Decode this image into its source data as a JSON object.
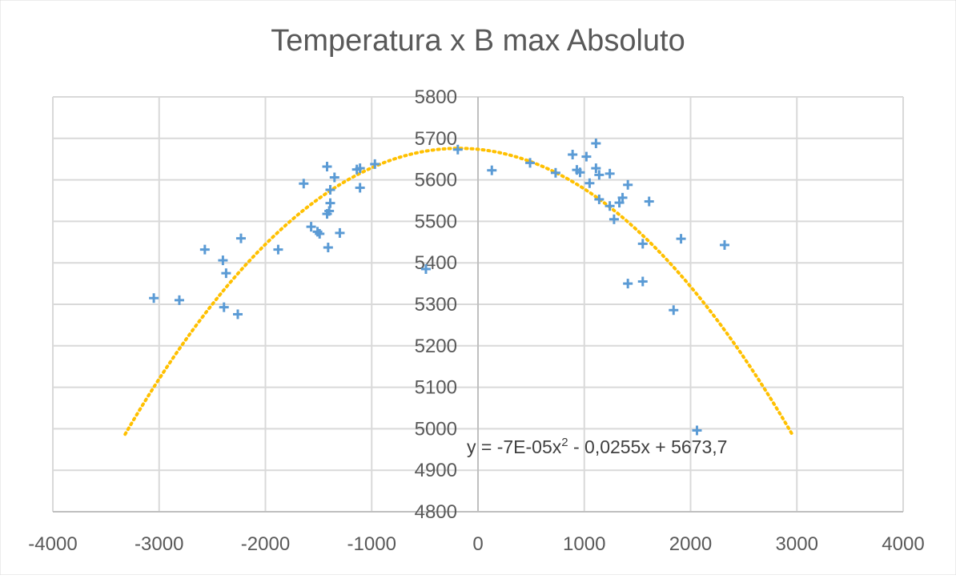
{
  "chart_data": {
    "type": "scatter",
    "title": "Temperatura x B max Absoluto",
    "xlabel": "",
    "ylabel": "",
    "xlim": [
      -4000,
      4000
    ],
    "ylim": [
      4800,
      5800
    ],
    "x_ticks": [
      -4000,
      -3000,
      -2000,
      -1000,
      0,
      1000,
      2000,
      3000,
      4000
    ],
    "y_ticks": [
      4800,
      4900,
      5000,
      5100,
      5200,
      5300,
      5400,
      5500,
      5600,
      5700,
      5800
    ],
    "x_tick_labels": [
      "-4000",
      "-3000",
      "-2000",
      "-1000",
      "0",
      "1000",
      "2000",
      "3000",
      "4000"
    ],
    "y_tick_labels": [
      "4800",
      "4900",
      "5000",
      "5100",
      "5200",
      "5300",
      "5400",
      "5500",
      "5600",
      "5700",
      "5800"
    ],
    "grid": true,
    "marker": "plus",
    "marker_color": "#5B9BD5",
    "series": [
      {
        "points": [
          [
            -3050,
            5315
          ],
          [
            -2810,
            5310
          ],
          [
            -2570,
            5432
          ],
          [
            -2400,
            5406
          ],
          [
            -2370,
            5375
          ],
          [
            -2390,
            5293
          ],
          [
            -2260,
            5276
          ],
          [
            -2230,
            5459
          ],
          [
            -1880,
            5432
          ],
          [
            -1640,
            5591
          ],
          [
            -1570,
            5487
          ],
          [
            -1510,
            5475
          ],
          [
            -1490,
            5470
          ],
          [
            -1420,
            5632
          ],
          [
            -1420,
            5518
          ],
          [
            -1400,
            5525
          ],
          [
            -1390,
            5576
          ],
          [
            -1390,
            5544
          ],
          [
            -1410,
            5437
          ],
          [
            -1350,
            5606
          ],
          [
            -1300,
            5472
          ],
          [
            -1140,
            5625
          ],
          [
            -1110,
            5628
          ],
          [
            -1110,
            5581
          ],
          [
            -970,
            5638
          ],
          [
            -490,
            5385
          ],
          [
            -190,
            5673
          ],
          [
            130,
            5623
          ],
          [
            490,
            5641
          ],
          [
            730,
            5617
          ],
          [
            890,
            5661
          ],
          [
            930,
            5624
          ],
          [
            960,
            5618
          ],
          [
            1020,
            5656
          ],
          [
            1050,
            5592
          ],
          [
            1110,
            5688
          ],
          [
            1110,
            5628
          ],
          [
            1140,
            5612
          ],
          [
            1140,
            5553
          ],
          [
            1240,
            5615
          ],
          [
            1240,
            5537
          ],
          [
            1280,
            5505
          ],
          [
            1330,
            5545
          ],
          [
            1360,
            5557
          ],
          [
            1410,
            5588
          ],
          [
            1410,
            5350
          ],
          [
            1550,
            5446
          ],
          [
            1550,
            5355
          ],
          [
            1610,
            5548
          ],
          [
            1840,
            5286
          ],
          [
            1910,
            5458
          ],
          [
            2060,
            4996
          ],
          [
            2320,
            5443
          ]
        ]
      }
    ],
    "trendline": {
      "type": "polynomial",
      "order": 2,
      "coefficients": [
        -7e-05,
        -0.0255,
        5673.7
      ],
      "x_range": [
        -3320,
        2960
      ],
      "color": "#FFC000",
      "style": "dotted",
      "equation_label": "y = -7E-05x",
      "equation_sup": "2",
      "equation_label_rest": " - 0,0255x + 5673,7"
    }
  }
}
